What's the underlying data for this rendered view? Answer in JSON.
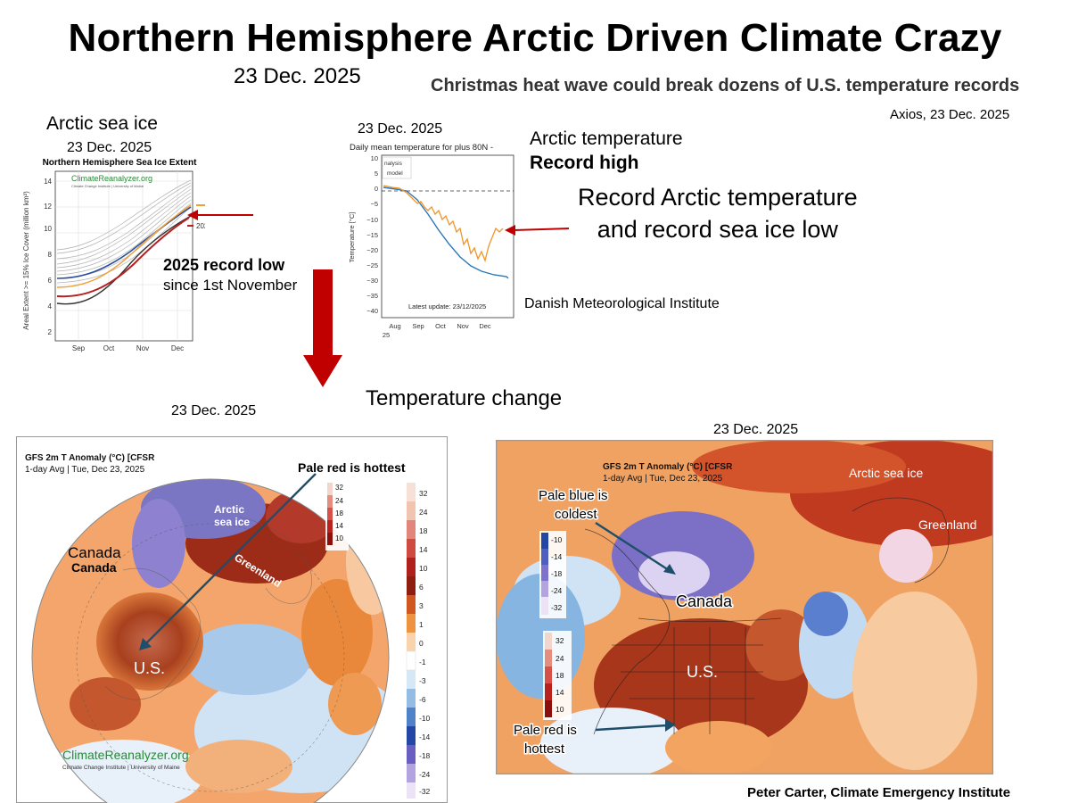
{
  "title": "Northern Hemisphere Arctic Driven Climate Crazy",
  "date_top": "23 Dec. 2025",
  "headline": "Christmas heat wave could break  dozens of U.S. temperature records",
  "headline_source": "Axios,  23 Dec. 2025",
  "sea_ice": {
    "section_title": "Arctic sea ice",
    "date": "23 Dec. 2025",
    "chart_title": "Northern Hemisphere Sea Ice Extent",
    "logo_text": "ClimateReanalyzer.org",
    "logo_sub": "Climate Change Institute | University of Maine",
    "ylabel": "Areal Extent >= 15% Ice Cover (million km²)",
    "yticks": [
      "2",
      "4",
      "6",
      "8",
      "10",
      "12",
      "14"
    ],
    "xticks": [
      "Sep",
      "Oct",
      "Nov",
      "Dec"
    ],
    "label_2024": "2024",
    "label_2025": "2025",
    "record_low_bold": "2025 record low",
    "record_low_sub": "since 1st November"
  },
  "arctic_temp_chart": {
    "date": "23 Dec. 2025",
    "chart_title": "Daily mean temperature for plus 80N -",
    "legend": [
      "nalysis",
      "model"
    ],
    "ylabel": "Temperature [°C]",
    "yticks": [
      "10",
      "5",
      "0",
      "−5",
      "−10",
      "−15",
      "−20",
      "−25",
      "−30",
      "−35",
      "−40"
    ],
    "xticks": [
      "Aug",
      "Sep",
      "Oct",
      "Nov",
      "Dec"
    ],
    "xyear": "25",
    "latest_update": "Latest update: 23/12/2025",
    "label_line1": "Arctic temperature",
    "label_line2": "Record high",
    "record_line1": "Record Arctic temperature",
    "record_line2": "and record sea ice low",
    "source": "Danish Meteorological Institute"
  },
  "temp_change": "Temperature change",
  "left_map": {
    "date": "23 Dec. 2025",
    "header1": "GFS 2m T Anomaly (°C) [CFSR",
    "header2": "1-day Avg | Tue, Dec 23, 2025",
    "pale_red_note": "Pale red is hottest",
    "label_arctic1": "Arctic",
    "label_arctic2": "sea ice",
    "label_canada1": "Canada",
    "label_canada2": "Canada",
    "label_greenland": "Greenland",
    "label_us": "U.S.",
    "logo_text": "ClimateReanalyzer.org",
    "logo_sub": "Climate Change Institute | University of Maine",
    "inset_ticks": [
      "32",
      "24",
      "18",
      "14",
      "10"
    ],
    "colorbar_ticks": [
      "32",
      "24",
      "18",
      "14",
      "10",
      "6",
      "3",
      "1",
      "0",
      "-1",
      "-3",
      "-6",
      "-10",
      "-14",
      "-18",
      "-24",
      "-32"
    ]
  },
  "right_map": {
    "date": "23 Dec. 2025",
    "header1": "GFS 2m T Anomaly (°C) [CFSR",
    "header2": "1-day Avg | Tue, Dec 23, 2025",
    "label_arctic": "Arctic sea ice",
    "label_greenland": "Greenland",
    "label_canada": "Canada",
    "label_us": "U.S.",
    "pale_blue_1": "Pale blue is",
    "pale_blue_2": "coldest",
    "pale_red_1": "Pale red is",
    "pale_red_2": "hottest",
    "blue_ticks": [
      "-10",
      "-14",
      "-18",
      "-24",
      "-32"
    ],
    "red_ticks": [
      "32",
      "24",
      "18",
      "14",
      "10"
    ]
  },
  "credit": "Peter Carter, Climate Emergency Institute"
}
